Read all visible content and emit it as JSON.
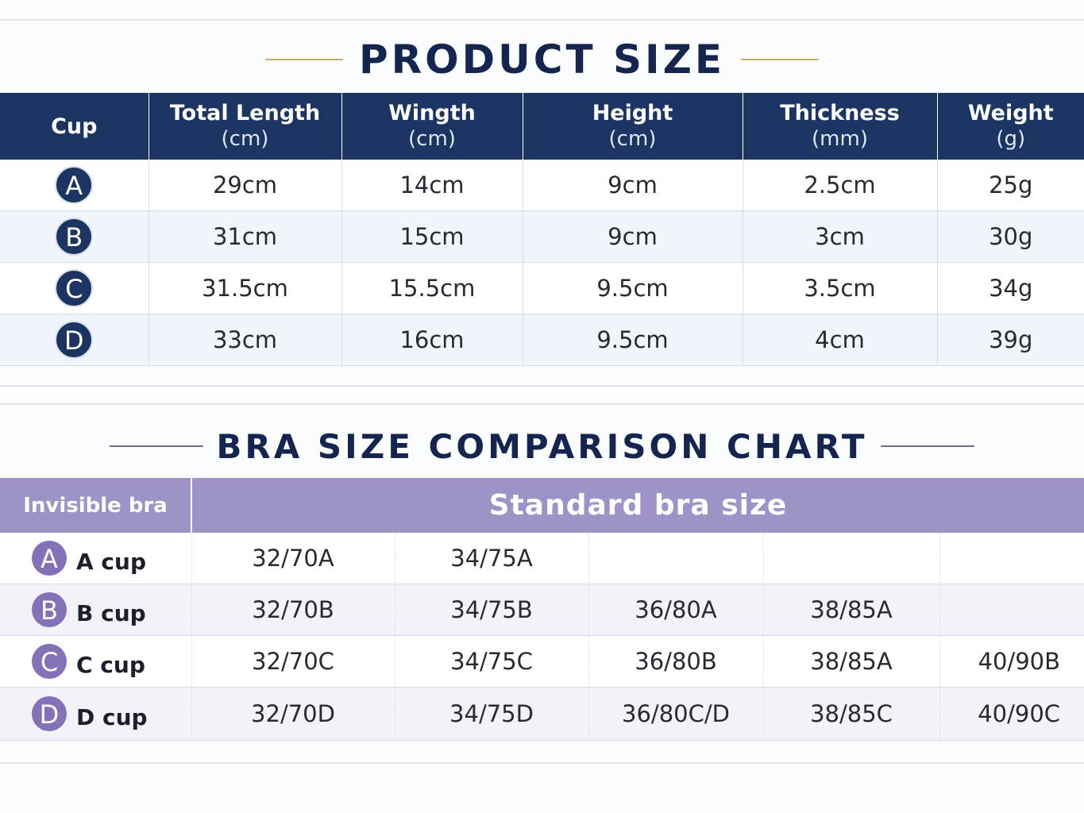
{
  "product_size": {
    "title": "PRODUCT SIZE",
    "headers": [
      {
        "label": "Cup",
        "unit": ""
      },
      {
        "label": "Total Length",
        "unit": "(cm)"
      },
      {
        "label": "Wingth",
        "unit": "(cm)"
      },
      {
        "label": "Height",
        "unit": "(cm)"
      },
      {
        "label": "Thickness",
        "unit": "(mm)"
      },
      {
        "label": "Weight",
        "unit": "(g)"
      }
    ],
    "rows": [
      {
        "cup": "A",
        "values": [
          "29cm",
          "14cm",
          "9cm",
          "2.5cm",
          "25g"
        ]
      },
      {
        "cup": "B",
        "values": [
          "31cm",
          "15cm",
          "9cm",
          "3cm",
          "30g"
        ]
      },
      {
        "cup": "C",
        "values": [
          "31.5cm",
          "15.5cm",
          "9.5cm",
          "3.5cm",
          "34g"
        ]
      },
      {
        "cup": "D",
        "values": [
          "33cm",
          "16cm",
          "9.5cm",
          "4cm",
          "39g"
        ]
      }
    ]
  },
  "bra_comparison": {
    "title": "BRA SIZE COMPARISON CHART",
    "header_left": "Invisible bra",
    "header_right": "Standard bra size",
    "rows": [
      {
        "letter": "A",
        "label": "A cup",
        "sizes": [
          "32/70A",
          "34/75A",
          "",
          "",
          ""
        ]
      },
      {
        "letter": "B",
        "label": "B cup",
        "sizes": [
          "32/70B",
          "34/75B",
          "36/80A",
          "38/85A",
          ""
        ]
      },
      {
        "letter": "C",
        "label": "C cup",
        "sizes": [
          "32/70C",
          "34/75C",
          "36/80B",
          "38/85A",
          "40/90B"
        ]
      },
      {
        "letter": "D",
        "label": "D cup",
        "sizes": [
          "32/70D",
          "34/75D",
          "36/80C/D",
          "38/85C",
          "40/90C"
        ]
      }
    ]
  },
  "colors": {
    "navy": "#1b3461",
    "gold_accent": "#c9ae6e",
    "purple_header": "#9f92c6",
    "purple_badge": "#8472b9"
  }
}
